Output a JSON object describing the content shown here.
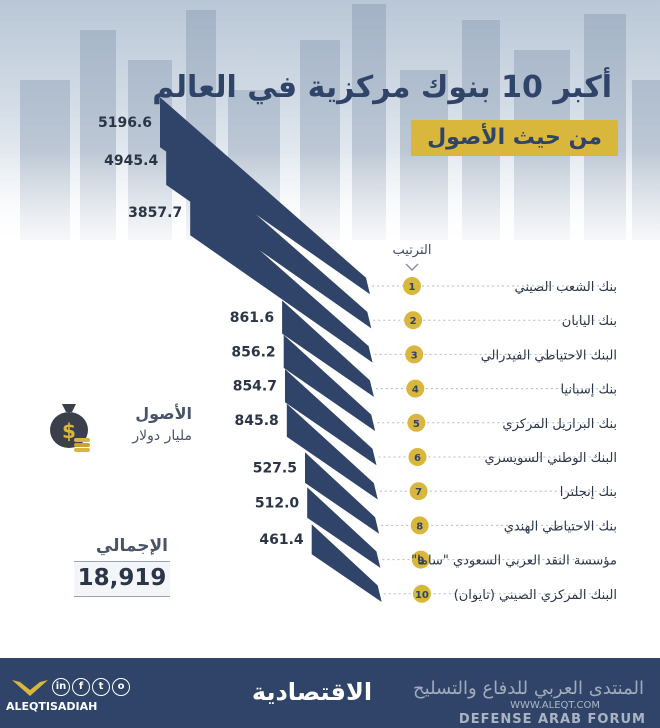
{
  "header": {
    "title": "أكبر 10 بنوك مركزية في العالم",
    "subtitle": "من حيث الأصول"
  },
  "rank_label": "الترتيب",
  "legend": {
    "label": "الأصول",
    "unit": "مليار دولار"
  },
  "total": {
    "label": "الإجمالي",
    "value": "18,919"
  },
  "chart_data": {
    "type": "bar",
    "title": "أكبر 10 بنوك مركزية في العالم",
    "subtitle": "من حيث الأصول",
    "unit": "مليار دولار",
    "ranks": [
      "1",
      "2",
      "3",
      "4",
      "5",
      "6",
      "7",
      "8",
      "9",
      "10"
    ],
    "categories": [
      "بنك الشعب الصيني",
      "بنك اليابان",
      "البنك الاحتياطي الفيدرالي",
      "بنك إسبانيا",
      "بنك البرازيل المركزي",
      "البنك الوطني السويسري",
      "بنك إنجلترا",
      "بنك الاحتياطي الهندي",
      "مؤسسة النقد العربي السعودي \"ساما\"",
      "البنك المركزي الصيني (تايوان)"
    ],
    "values": [
      5196.6,
      4945.4,
      3857.7,
      861.6,
      856.2,
      854.7,
      845.8,
      527.5,
      512.0,
      461.4
    ],
    "value_labels": [
      "5196.6",
      "4945.4",
      "3857.7",
      "861.6",
      "856.2",
      "854.7",
      "845.8",
      "527.5",
      "512.0",
      "461.4"
    ],
    "colors": {
      "bar": "#2f4468",
      "rank_badge": "#d8b73c",
      "accent": "#d8b73c"
    }
  },
  "footer": {
    "brand": "الاقتصادية",
    "handle": "ALEQTISADIAH",
    "social": [
      "in",
      "f",
      "t",
      "o"
    ],
    "watermark_ar": "المنتدى العربي للدفاع والتسليح",
    "watermark_url": "WWW.ALEQT.COM",
    "watermark_en": "DEFENSE ARAB FORUM"
  }
}
